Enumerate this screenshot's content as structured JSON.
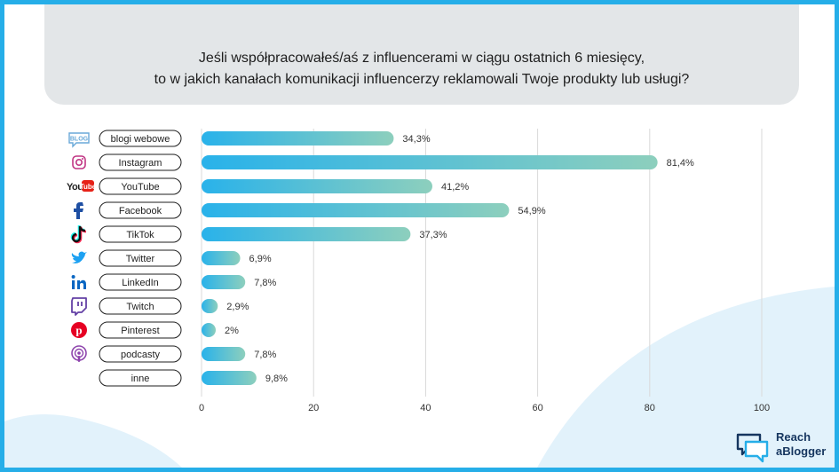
{
  "title": {
    "line1": "Jeśli współpracowałeś/aś z influencerami w ciągu ostatnich 6 miesięcy,",
    "line2": "to w jakich kanałach komunikacji influencerzy reklamowali Twoje produkty lub usługi?"
  },
  "brand": {
    "line1": "Reach",
    "line2": "aBlogger"
  },
  "colors": {
    "frame": "#26aee8",
    "bar_start": "#29b2ea",
    "bar_end": "#8dcfbd",
    "title_box": "#e3e6e8",
    "grid": "#d9d9d9"
  },
  "chart_data": {
    "type": "bar",
    "orientation": "horizontal",
    "categories": [
      "blogi webowe",
      "Instagram",
      "YouTube",
      "Facebook",
      "TikTok",
      "Twitter",
      "LinkedIn",
      "Twitch",
      "Pinterest",
      "podcasty",
      "inne"
    ],
    "values": [
      34.3,
      81.4,
      41.2,
      54.9,
      37.3,
      6.9,
      7.8,
      2.9,
      2,
      7.8,
      9.8
    ],
    "value_labels": [
      "34,3%",
      "81,4%",
      "41,2%",
      "54,9%",
      "37,3%",
      "6,9%",
      "7,8%",
      "2,9%",
      "2%",
      "7,8%",
      "9,8%"
    ],
    "icons": [
      "blog-icon",
      "instagram-icon",
      "youtube-icon",
      "facebook-icon",
      "tiktok-icon",
      "twitter-icon",
      "linkedin-icon",
      "twitch-icon",
      "pinterest-icon",
      "podcast-icon",
      ""
    ],
    "xticks": [
      0,
      20,
      40,
      60,
      80,
      100
    ],
    "xlim": [
      0,
      100
    ],
    "grid": true
  }
}
